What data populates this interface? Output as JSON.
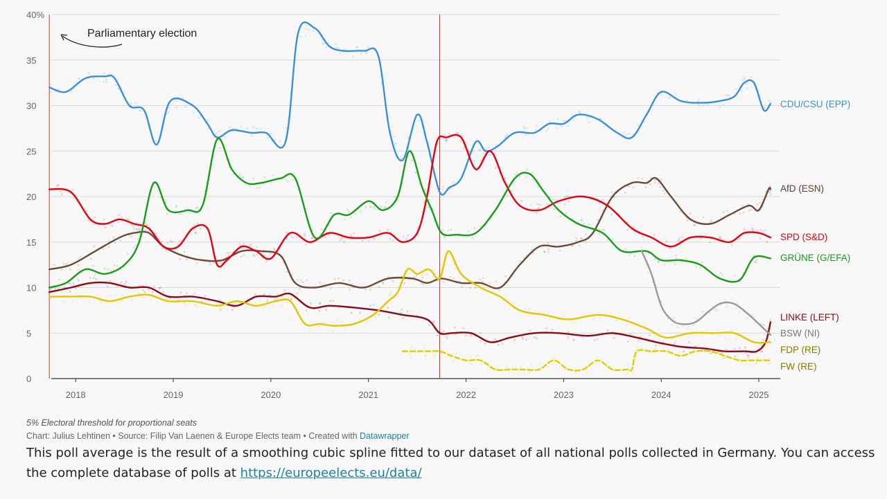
{
  "chart_data": {
    "type": "line",
    "title": "",
    "xlabel": "",
    "ylabel": "",
    "xlim": [
      2017.75,
      2025.22
    ],
    "ylim": [
      0,
      40
    ],
    "grid": true,
    "y_ticks": [
      0,
      5,
      10,
      15,
      20,
      25,
      30,
      35,
      40
    ],
    "y_tick_labels": [
      "0",
      "5",
      "10",
      "15",
      "20",
      "25",
      "30",
      "35",
      "40%"
    ],
    "x_ticks": [
      2018,
      2019,
      2020,
      2021,
      2022,
      2023,
      2024,
      2025
    ],
    "x_tick_labels": [
      "2018",
      "2019",
      "2020",
      "2021",
      "2022",
      "2023",
      "2024",
      "2025"
    ],
    "election_markers": [
      {
        "x": 2017.73
      },
      {
        "x": 2021.73
      }
    ],
    "annotation": {
      "text": "Parliamentary election"
    },
    "legend_placement": "right, labels at line ends",
    "series": [
      {
        "name": "CDU/CSU (EPP)",
        "color": "#3a8fd6",
        "style": "solid",
        "x": [
          2017.73,
          2017.9,
          2018.1,
          2018.3,
          2018.4,
          2018.55,
          2018.7,
          2018.83,
          2018.97,
          2019.2,
          2019.35,
          2019.45,
          2019.6,
          2019.8,
          2019.95,
          2020.15,
          2020.28,
          2020.45,
          2020.6,
          2020.75,
          2020.95,
          2021.1,
          2021.22,
          2021.35,
          2021.5,
          2021.6,
          2021.73,
          2021.83,
          2021.95,
          2022.1,
          2022.2,
          2022.32,
          2022.5,
          2022.7,
          2022.85,
          2023.0,
          2023.15,
          2023.35,
          2023.55,
          2023.7,
          2023.85,
          2024.0,
          2024.2,
          2024.4,
          2024.6,
          2024.75,
          2024.85,
          2024.95,
          2025.05,
          2025.12
        ],
        "y": [
          32,
          31.5,
          33,
          33.2,
          33,
          30,
          29.5,
          25.7,
          30.5,
          30,
          28,
          26.5,
          27.3,
          27,
          27,
          26,
          38,
          38.5,
          36.5,
          36,
          36,
          35.5,
          27,
          24,
          29,
          26,
          20.5,
          21,
          22,
          26,
          25,
          25.5,
          27,
          27,
          28,
          28,
          29,
          28.5,
          27,
          26.5,
          29,
          31.5,
          30.5,
          30.3,
          30.5,
          31,
          32.5,
          32.5,
          29.5,
          30.2
        ]
      },
      {
        "name": "AfD (ESN)",
        "color": "#6b4a3a",
        "style": "solid",
        "x": [
          2017.73,
          2017.95,
          2018.2,
          2018.45,
          2018.6,
          2018.75,
          2018.9,
          2019.1,
          2019.3,
          2019.5,
          2019.7,
          2019.9,
          2020.1,
          2020.25,
          2020.45,
          2020.7,
          2020.95,
          2021.2,
          2021.45,
          2021.6,
          2021.75,
          2021.95,
          2022.15,
          2022.35,
          2022.55,
          2022.75,
          2022.95,
          2023.15,
          2023.3,
          2023.5,
          2023.7,
          2023.85,
          2023.95,
          2024.1,
          2024.3,
          2024.5,
          2024.7,
          2024.9,
          2025.0,
          2025.1,
          2025.12
        ],
        "y": [
          12,
          12.5,
          14,
          15.5,
          16,
          16,
          14.5,
          13.5,
          13,
          13,
          14,
          14,
          13.5,
          10.5,
          10,
          10.5,
          10,
          11,
          11,
          10.5,
          11,
          10.5,
          10.5,
          10,
          12.5,
          14.5,
          14.5,
          15,
          16,
          20,
          21.5,
          21.5,
          22,
          20,
          17.5,
          17,
          18,
          19,
          18.5,
          20.8,
          20.8
        ]
      },
      {
        "name": "SPD (S&D)",
        "color": "#e3000f",
        "style": "solid",
        "x": [
          2017.73,
          2017.95,
          2018.15,
          2018.3,
          2018.45,
          2018.6,
          2018.75,
          2018.9,
          2019.05,
          2019.2,
          2019.35,
          2019.45,
          2019.55,
          2019.7,
          2019.85,
          2020.0,
          2020.2,
          2020.4,
          2020.6,
          2020.8,
          2021.0,
          2021.2,
          2021.35,
          2021.5,
          2021.6,
          2021.7,
          2021.8,
          2021.95,
          2022.1,
          2022.25,
          2022.4,
          2022.55,
          2022.75,
          2022.95,
          2023.2,
          2023.45,
          2023.7,
          2023.9,
          2024.1,
          2024.3,
          2024.5,
          2024.7,
          2024.85,
          2025.0,
          2025.12
        ],
        "y": [
          20.8,
          20.5,
          17.5,
          17,
          17.5,
          17,
          16.5,
          14.5,
          14.5,
          16.5,
          16.5,
          12.5,
          13,
          14.5,
          14,
          13.2,
          16,
          15,
          16,
          15.5,
          15.5,
          16,
          15,
          16,
          20,
          26,
          26.5,
          26.5,
          23,
          25,
          21.5,
          19,
          18.5,
          19.5,
          20,
          19,
          16.5,
          15.5,
          14.5,
          15.5,
          15.5,
          15,
          16,
          16,
          15.5
        ]
      },
      {
        "name": "GRÜNE (G/EFA)",
        "color": "#1a9a1a",
        "style": "solid",
        "x": [
          2017.73,
          2017.9,
          2018.1,
          2018.3,
          2018.5,
          2018.65,
          2018.8,
          2018.95,
          2019.15,
          2019.3,
          2019.45,
          2019.6,
          2019.75,
          2019.9,
          2020.1,
          2020.25,
          2020.45,
          2020.65,
          2020.8,
          2021.0,
          2021.15,
          2021.3,
          2021.42,
          2021.55,
          2021.65,
          2021.75,
          2021.9,
          2022.1,
          2022.3,
          2022.5,
          2022.65,
          2022.8,
          2022.95,
          2023.15,
          2023.4,
          2023.6,
          2023.85,
          2024.0,
          2024.2,
          2024.4,
          2024.6,
          2024.8,
          2024.95,
          2025.12
        ],
        "y": [
          10,
          10.5,
          12,
          11.5,
          12.5,
          15,
          21.5,
          18.5,
          18.5,
          19,
          26.3,
          23,
          21.5,
          21.5,
          22,
          22,
          15.5,
          18,
          18,
          19.5,
          18.5,
          20,
          25,
          21,
          18.5,
          16,
          15.8,
          16,
          18.5,
          22,
          22.5,
          20.5,
          18.5,
          17,
          16,
          14,
          14,
          13,
          13,
          12.5,
          11,
          10.8,
          13.3,
          13.2
        ]
      },
      {
        "name": "LINKE (LEFT)",
        "color": "#8b0a1a",
        "style": "solid",
        "x": [
          2017.73,
          2017.95,
          2018.15,
          2018.35,
          2018.55,
          2018.75,
          2018.95,
          2019.2,
          2019.45,
          2019.65,
          2019.85,
          2020.05,
          2020.2,
          2020.4,
          2020.6,
          2020.85,
          2021.1,
          2021.35,
          2021.6,
          2021.73,
          2021.85,
          2022.05,
          2022.25,
          2022.45,
          2022.7,
          2022.95,
          2023.25,
          2023.5,
          2023.75,
          2023.95,
          2024.2,
          2024.45,
          2024.65,
          2024.85,
          2024.98,
          2025.07,
          2025.12
        ],
        "y": [
          9.5,
          10,
          10.5,
          10.5,
          10,
          10,
          9,
          9,
          8.5,
          8,
          9,
          9,
          9.3,
          7.8,
          8,
          7.8,
          7.5,
          7,
          6.5,
          5,
          5,
          5,
          4,
          4.5,
          5,
          5,
          4.7,
          5,
          4.5,
          4,
          3.5,
          3.3,
          3,
          3,
          3,
          4,
          6.2
        ]
      },
      {
        "name": "BSW (NI)",
        "color": "#9a9a9a",
        "style": "solid",
        "x": [
          2023.8,
          2023.9,
          2024.0,
          2024.1,
          2024.2,
          2024.35,
          2024.5,
          2024.62,
          2024.75,
          2024.9,
          2025.05,
          2025.12
        ],
        "y": [
          14,
          11.5,
          8,
          6.5,
          6,
          6.2,
          7.5,
          8.3,
          8.2,
          7,
          5.5,
          4.8
        ]
      },
      {
        "name": "FDP (RE)",
        "color": "#e3c600",
        "style": "solid",
        "x": [
          2017.73,
          2017.95,
          2018.15,
          2018.35,
          2018.55,
          2018.75,
          2018.95,
          2019.2,
          2019.45,
          2019.65,
          2019.85,
          2020.05,
          2020.2,
          2020.35,
          2020.5,
          2020.65,
          2020.85,
          2021.05,
          2021.2,
          2021.3,
          2021.4,
          2021.5,
          2021.62,
          2021.73,
          2021.82,
          2021.95,
          2022.15,
          2022.35,
          2022.55,
          2022.8,
          2023.05,
          2023.35,
          2023.6,
          2023.85,
          2024.05,
          2024.3,
          2024.55,
          2024.75,
          2024.95,
          2025.12
        ],
        "y": [
          9,
          9,
          9,
          8.5,
          9,
          9.2,
          8.5,
          8.5,
          8,
          8.5,
          8,
          8.5,
          8.5,
          6,
          6,
          5.8,
          6,
          7,
          8.5,
          9.5,
          12,
          11.5,
          12,
          11,
          14,
          11.5,
          10,
          9,
          7.5,
          7,
          6.5,
          7,
          6.5,
          5.5,
          4.5,
          5,
          5,
          5,
          4,
          4
        ]
      },
      {
        "name": "FW (RE)",
        "color": "#e0ce00",
        "style": "dashed",
        "x": [
          2021.35,
          2021.45,
          2021.6,
          2021.73,
          2021.85,
          2022.0,
          2022.15,
          2022.3,
          2022.45,
          2022.6,
          2022.75,
          2022.9,
          2023.05,
          2023.2,
          2023.35,
          2023.5,
          2023.65,
          2023.7,
          2023.75,
          2023.9,
          2024.05,
          2024.2,
          2024.35,
          2024.5,
          2024.65,
          2024.8,
          2024.9,
          2025.0,
          2025.12
        ],
        "y": [
          3,
          3,
          3,
          3,
          2.5,
          2,
          2,
          1,
          1,
          1,
          1,
          2,
          1,
          1,
          2,
          1,
          1,
          1,
          3,
          3,
          3,
          2.5,
          3,
          3,
          2.5,
          2,
          2,
          2,
          2
        ]
      }
    ]
  },
  "notes": {
    "threshold": "5% Electoral threshold for proportional seats",
    "credit_prefix": "Chart: Julius Lehtinen • Source: Filip Van Laenen & Europe Elects team • Created with ",
    "credit_link": "Datawrapper"
  },
  "description": {
    "text": "This poll average is the result of a smoothing cubic spline fitted to our dataset of all national polls collected in Germany. You can access the complete database of polls at ",
    "link": "https://europeelects.eu/data/"
  }
}
